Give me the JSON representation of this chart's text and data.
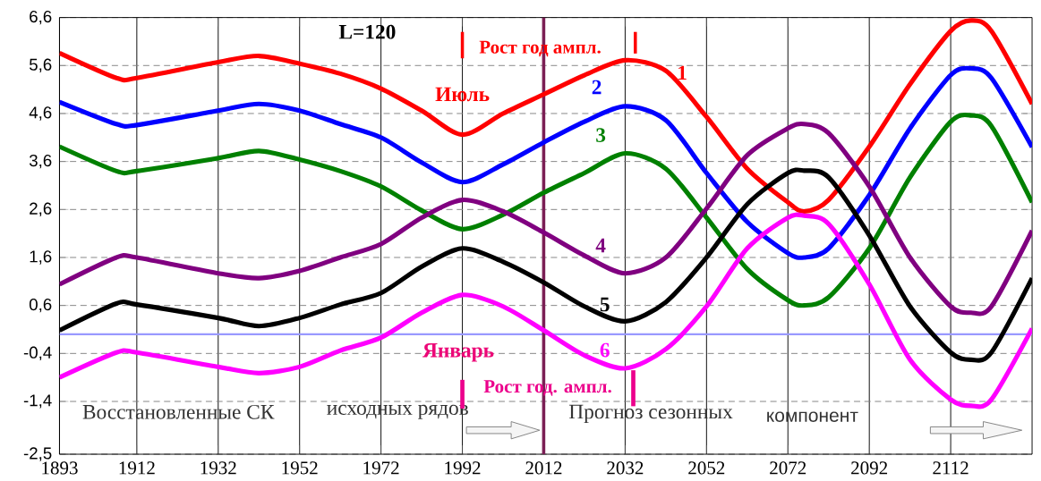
{
  "chart_data": {
    "type": "line",
    "x": [
      1893,
      1907,
      1912,
      1932,
      1942,
      1952,
      1962,
      1972,
      1982,
      1992,
      2002,
      2012,
      2022,
      2032,
      2042,
      2052,
      2062,
      2072,
      2076,
      2082,
      2092,
      2102,
      2112,
      2117,
      2122,
      2132
    ],
    "series": [
      {
        "name": "1",
        "color": "#ff0000",
        "values": [
          5.86,
          5.34,
          5.34,
          5.67,
          5.8,
          5.64,
          5.43,
          5.12,
          4.66,
          4.16,
          4.6,
          5.0,
          5.4,
          5.71,
          5.49,
          4.53,
          3.45,
          2.75,
          2.56,
          2.8,
          3.91,
          5.21,
          6.32,
          6.54,
          6.32,
          4.8
        ]
      },
      {
        "name": "2",
        "color": "#0000ff",
        "values": [
          4.84,
          4.38,
          4.36,
          4.66,
          4.8,
          4.66,
          4.38,
          4.1,
          3.58,
          3.17,
          3.54,
          4.0,
          4.43,
          4.75,
          4.46,
          3.36,
          2.34,
          1.69,
          1.6,
          1.79,
          2.9,
          4.29,
          5.4,
          5.54,
          5.34,
          3.9
        ]
      },
      {
        "name": "3",
        "color": "#008000",
        "values": [
          3.91,
          3.4,
          3.4,
          3.67,
          3.82,
          3.64,
          3.4,
          3.08,
          2.58,
          2.19,
          2.49,
          2.95,
          3.36,
          3.77,
          3.45,
          2.43,
          1.36,
          0.71,
          0.6,
          0.77,
          1.79,
          3.27,
          4.43,
          4.56,
          4.34,
          2.75
        ]
      },
      {
        "name": "4",
        "color": "#800080",
        "values": [
          1.04,
          1.6,
          1.6,
          1.27,
          1.17,
          1.32,
          1.6,
          1.88,
          2.43,
          2.8,
          2.56,
          2.12,
          1.64,
          1.27,
          1.6,
          2.62,
          3.73,
          4.29,
          4.38,
          4.19,
          3.08,
          1.6,
          0.58,
          0.45,
          0.58,
          2.16
        ]
      },
      {
        "name": "5",
        "color": "#000000",
        "values": [
          0.08,
          0.64,
          0.62,
          0.34,
          0.17,
          0.34,
          0.62,
          0.86,
          1.41,
          1.79,
          1.51,
          1.08,
          0.58,
          0.27,
          0.67,
          1.6,
          2.71,
          3.36,
          3.41,
          3.27,
          2.06,
          0.58,
          -0.38,
          -0.53,
          -0.38,
          1.17
        ]
      },
      {
        "name": "6",
        "color": "#ff00ff",
        "values": [
          -0.9,
          -0.38,
          -0.38,
          -0.68,
          -0.81,
          -0.68,
          -0.34,
          -0.07,
          0.45,
          0.82,
          0.58,
          0.08,
          -0.44,
          -0.71,
          -0.31,
          0.58,
          1.79,
          2.43,
          2.47,
          2.3,
          1.04,
          -0.53,
          -1.36,
          -1.49,
          -1.36,
          0.12
        ]
      }
    ],
    "xlim": [
      1893,
      2132
    ],
    "xticks": [
      1893,
      1912,
      1932,
      1952,
      1972,
      1992,
      2012,
      2032,
      2052,
      2072,
      2092,
      2112
    ],
    "ylim": [
      -2.5,
      6.6
    ],
    "yticks": [
      {
        "value": -2.5,
        "label": "-2,5"
      },
      {
        "value": -1.4,
        "label": "-1,4"
      },
      {
        "value": -0.4,
        "label": "-0,4"
      },
      {
        "value": 0.6,
        "label": "0,6"
      },
      {
        "value": 1.6,
        "label": "1,6"
      },
      {
        "value": 2.6,
        "label": "2,6"
      },
      {
        "value": 3.6,
        "label": "3,6"
      },
      {
        "value": 4.6,
        "label": "4,6"
      },
      {
        "value": 5.6,
        "label": "5,6"
      },
      {
        "value": 6.6,
        "label": "6,6"
      }
    ],
    "ref_lines": [
      {
        "axis": "y",
        "value": 0,
        "color": "#9999ff"
      },
      {
        "axis": "x",
        "value": 2012,
        "color": "#7b1f55"
      }
    ],
    "annotations": [
      "L=120",
      "Рост год ампл.",
      "Июль",
      "Январь",
      "Рост год. ампл.",
      "Восстановленные СК",
      "исходных рядов",
      "Прогноз сезонных",
      "компонент"
    ],
    "grid": true,
    "line_style": "solid",
    "marker": "none",
    "legend": false
  }
}
